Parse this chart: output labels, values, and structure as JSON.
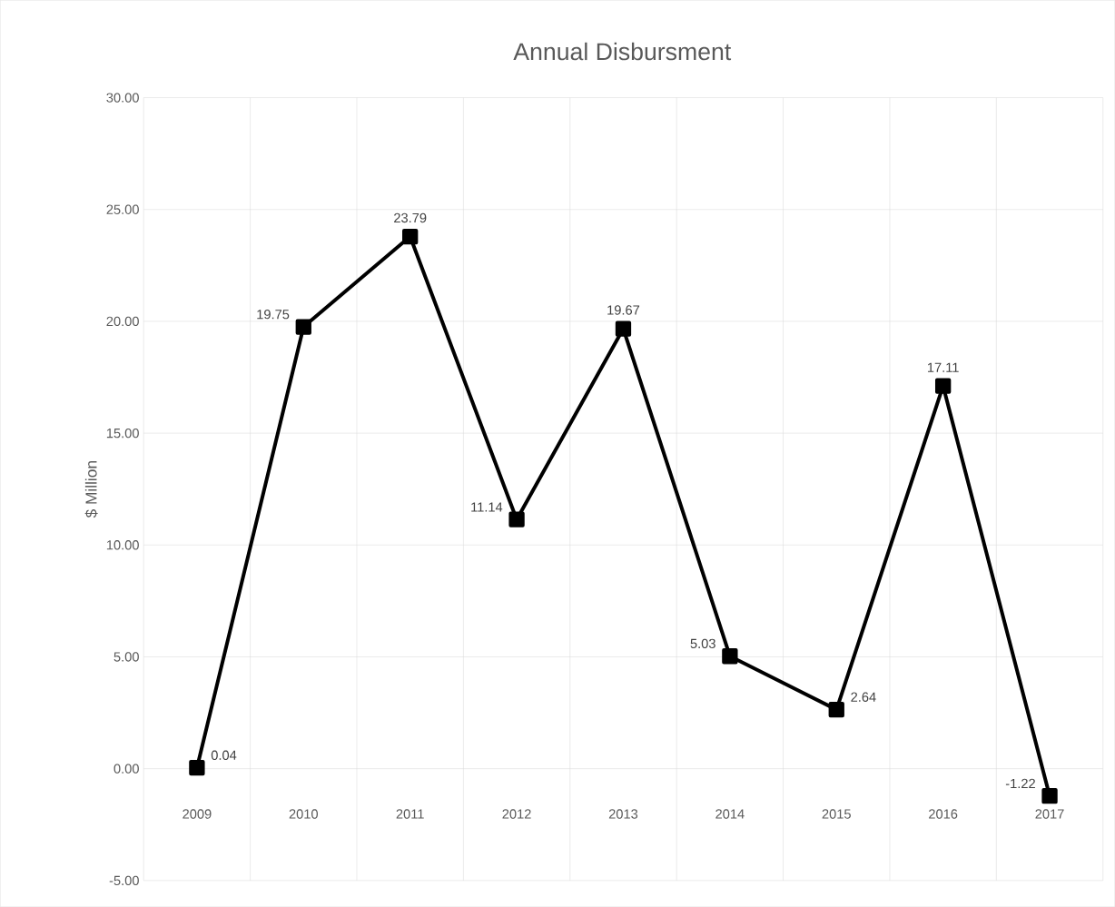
{
  "chart_data": {
    "type": "line",
    "title": "Annual Disbursment",
    "ylabel": "$ Million",
    "categories": [
      "2009",
      "2010",
      "2011",
      "2012",
      "2013",
      "2014",
      "2015",
      "2016",
      "2017"
    ],
    "values": [
      0.04,
      19.75,
      23.79,
      11.14,
      19.67,
      5.03,
      2.64,
      17.11,
      -1.22
    ],
    "color": "#000000",
    "marker": "square",
    "line_style": "solid",
    "data_labels": true,
    "grid": true,
    "ylim": [
      -5,
      30
    ],
    "yticks": [
      {
        "value": -5,
        "label": "-5.00"
      },
      {
        "value": 0,
        "label": "0.00"
      },
      {
        "value": 5,
        "label": "5.00"
      },
      {
        "value": 10,
        "label": "10.00"
      },
      {
        "value": 15,
        "label": "15.00"
      },
      {
        "value": 20,
        "label": "20.00"
      },
      {
        "value": 25,
        "label": "25.00"
      },
      {
        "value": 30,
        "label": "30.00"
      }
    ]
  }
}
